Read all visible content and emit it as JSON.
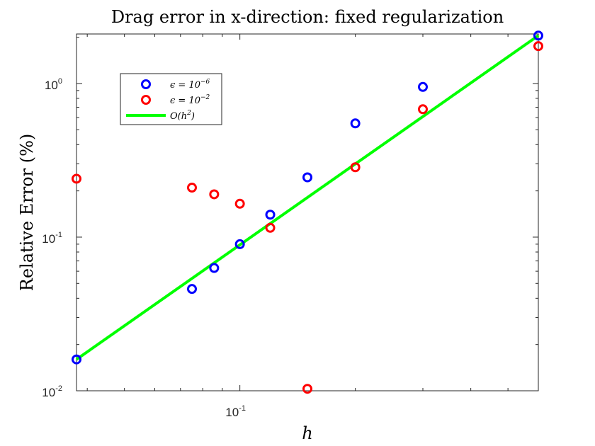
{
  "chart_data": {
    "type": "scatter",
    "title": "Drag error in x-direction: fixed regularization",
    "xlabel": "h",
    "ylabel": "Relative Error  (%)",
    "xscale": "log",
    "yscale": "log",
    "xlim": [
      0.0375,
      0.6
    ],
    "ylim": [
      0.01,
      2.1
    ],
    "x_ticks": [
      {
        "base": "10",
        "exp": "-1",
        "value": 0.1
      }
    ],
    "y_ticks": [
      {
        "base": "10",
        "exp": "-2",
        "value": 0.01
      },
      {
        "base": "10",
        "exp": "-1",
        "value": 0.1
      },
      {
        "base": "10",
        "exp": "0",
        "value": 1
      }
    ],
    "grid": false,
    "legend_position": "upper-left",
    "series": [
      {
        "name": "ϵ = 10⁻⁶",
        "label_base": "ϵ = 10",
        "label_exp": "−6",
        "kind": "marker",
        "color": "#0000ff",
        "x": [
          0.0375,
          0.075,
          0.0857,
          0.1,
          0.12,
          0.15,
          0.2,
          0.3,
          0.6
        ],
        "y": [
          0.016,
          0.046,
          0.063,
          0.09,
          0.14,
          0.245,
          0.55,
          0.95,
          2.05
        ]
      },
      {
        "name": "ϵ = 10⁻²",
        "label_base": "ϵ = 10",
        "label_exp": "−2",
        "kind": "marker",
        "color": "#ff0000",
        "x": [
          0.0375,
          0.075,
          0.0857,
          0.1,
          0.12,
          0.15,
          0.2,
          0.3,
          0.6
        ],
        "y": [
          0.24,
          0.21,
          0.19,
          0.165,
          0.115,
          0.0103,
          0.285,
          0.68,
          1.75
        ]
      },
      {
        "name": "O(h²)",
        "label_base": "O(h",
        "label_exp": "2",
        "label_tail": ")",
        "kind": "line",
        "color": "#00ff00",
        "x": [
          0.0375,
          0.6
        ],
        "y": [
          0.016,
          2.05
        ]
      }
    ]
  }
}
